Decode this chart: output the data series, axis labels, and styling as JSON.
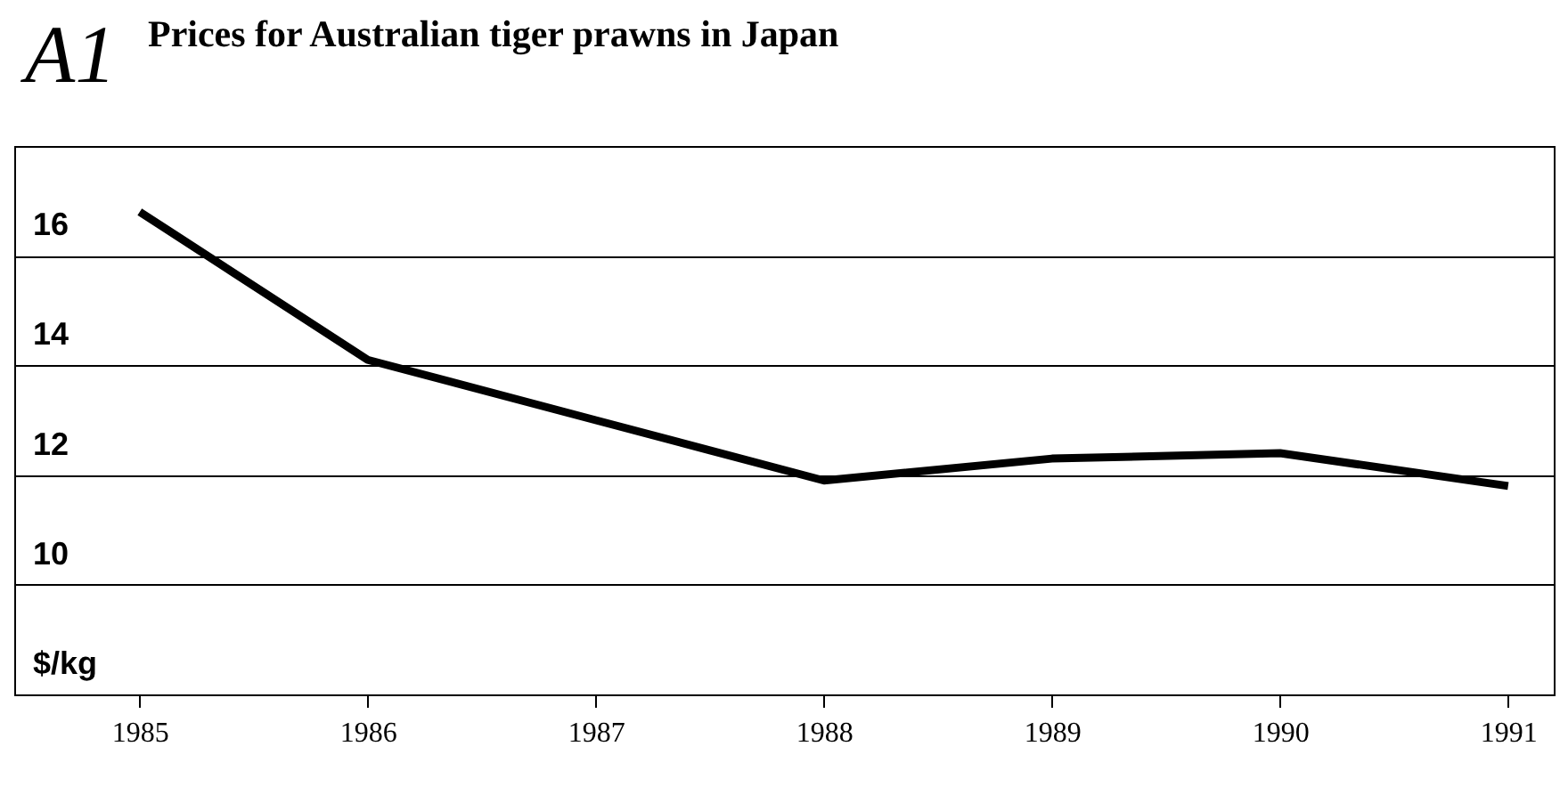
{
  "chart_data": {
    "type": "line",
    "title": "Prices for Australian tiger prawns in Japan",
    "ylabel": "$/kg",
    "annotations": [
      "A1"
    ],
    "x": [
      1985,
      1986,
      1987,
      1988,
      1989,
      1990,
      1991
    ],
    "series": [
      {
        "color": "#000000",
        "values": [
          16.8,
          14.1,
          13.0,
          11.9,
          12.3,
          12.4,
          11.8
        ]
      }
    ],
    "xlim": [
      1984.45,
      1991.2
    ],
    "xticks": [
      1985,
      1986,
      1987,
      1988,
      1989,
      1990,
      1991
    ],
    "ylim": [
      8,
      18
    ],
    "yticks": [
      10,
      12,
      14,
      16
    ],
    "grid": "y",
    "legend": false,
    "marker": "none",
    "line_style": "solid"
  }
}
